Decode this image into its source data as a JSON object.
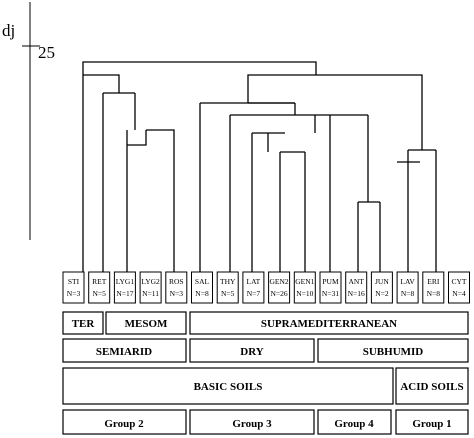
{
  "axis": {
    "label": "dj",
    "tick_value": "25"
  },
  "leaves": [
    {
      "code": "STI",
      "n": "N=3"
    },
    {
      "code": "RET",
      "n": "N=5"
    },
    {
      "code": "LYG1",
      "n": "N=17"
    },
    {
      "code": "LYG2",
      "n": "N=11"
    },
    {
      "code": "ROS",
      "n": "N=3"
    },
    {
      "code": "SAL",
      "n": "N=8"
    },
    {
      "code": "THY",
      "n": "N=5"
    },
    {
      "code": "LAT",
      "n": "N=7"
    },
    {
      "code": "GEN2",
      "n": "N=26"
    },
    {
      "code": "GEN1",
      "n": "N=10"
    },
    {
      "code": "PUM",
      "n": "N=31"
    },
    {
      "code": "ANT",
      "n": "N=16"
    },
    {
      "code": "JUN",
      "n": "N=2"
    },
    {
      "code": "LAV",
      "n": "N=8"
    },
    {
      "code": "ERI",
      "n": "N=8"
    },
    {
      "code": "CYT",
      "n": "N=4"
    }
  ],
  "bands": {
    "vegetation": [
      "TER",
      "MESOM",
      "SUPRAMEDITERRANEAN"
    ],
    "climate": [
      "SEMIARID",
      "DRY",
      "SUBHUMID"
    ],
    "soils": [
      "BASIC SOILS",
      "ACID SOILS"
    ],
    "groups": [
      "Group 2",
      "Group 3",
      "Group 4",
      "Group 1"
    ]
  }
}
